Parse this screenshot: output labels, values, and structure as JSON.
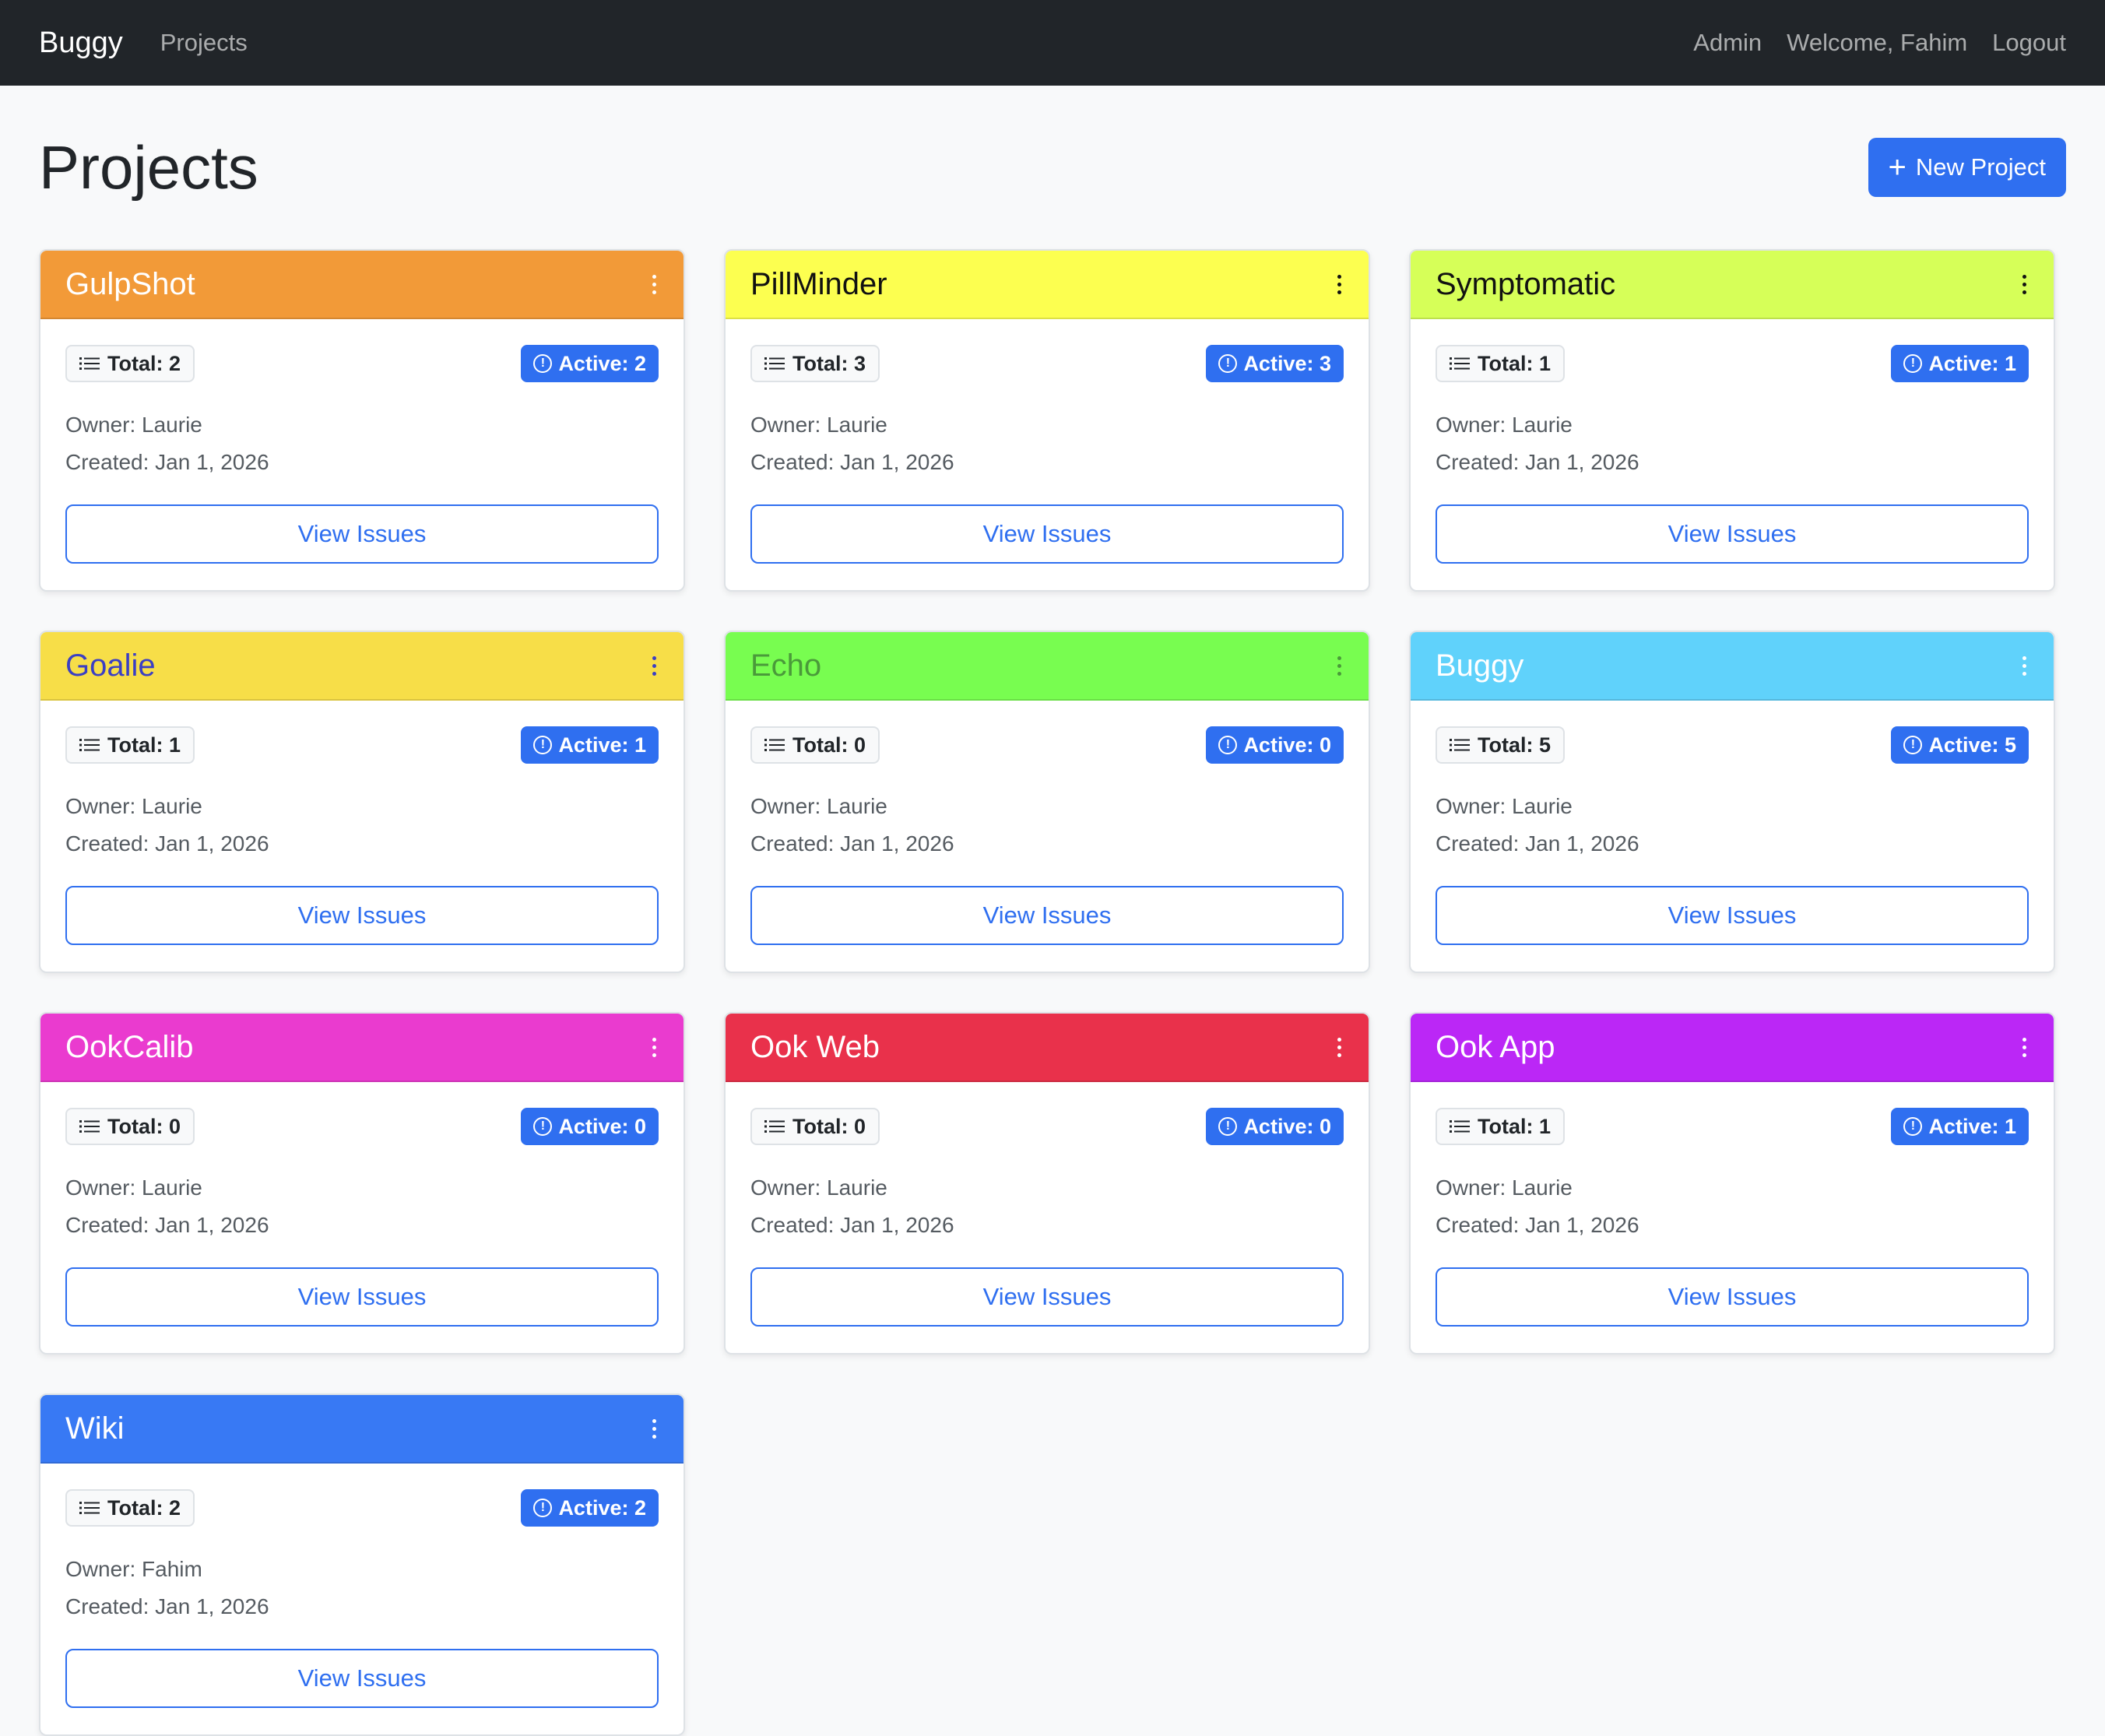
{
  "navbar": {
    "brand": "Buggy",
    "projects_link": "Projects",
    "admin_link": "Admin",
    "welcome": "Welcome, Fahim",
    "logout": "Logout"
  },
  "page": {
    "title": "Projects",
    "new_project_label": "New Project"
  },
  "projects": [
    {
      "name": "GulpShot",
      "header_bg": "#f29a38",
      "title_color": "#ffffff",
      "total": "Total: 2",
      "active": "Active: 2",
      "owner": "Owner: Laurie",
      "created": "Created: Jan 1, 2026",
      "action": "View Issues"
    },
    {
      "name": "PillMinder",
      "header_bg": "#fcff50",
      "title_color": "#111111",
      "total": "Total: 3",
      "active": "Active: 3",
      "owner": "Owner: Laurie",
      "created": "Created: Jan 1, 2026",
      "action": "View Issues"
    },
    {
      "name": "Symptomatic",
      "header_bg": "#d6ff58",
      "title_color": "#111111",
      "total": "Total: 1",
      "active": "Active: 1",
      "owner": "Owner: Laurie",
      "created": "Created: Jan 1, 2026",
      "action": "View Issues"
    },
    {
      "name": "Goalie",
      "header_bg": "#f7de48",
      "title_color": "#3b3fc4",
      "total": "Total: 1",
      "active": "Active: 1",
      "owner": "Owner: Laurie",
      "created": "Created: Jan 1, 2026",
      "action": "View Issues"
    },
    {
      "name": "Echo",
      "header_bg": "#78fd50",
      "title_color": "#4a9a3a",
      "total": "Total: 0",
      "active": "Active: 0",
      "owner": "Owner: Laurie",
      "created": "Created: Jan 1, 2026",
      "action": "View Issues"
    },
    {
      "name": "Buggy",
      "header_bg": "#60d2fb",
      "title_color": "#ffffff",
      "total": "Total: 5",
      "active": "Active: 5",
      "owner": "Owner: Laurie",
      "created": "Created: Jan 1, 2026",
      "action": "View Issues"
    },
    {
      "name": "OokCalib",
      "header_bg": "#ea3bcf",
      "title_color": "#ffffff",
      "total": "Total: 0",
      "active": "Active: 0",
      "owner": "Owner: Laurie",
      "created": "Created: Jan 1, 2026",
      "action": "View Issues"
    },
    {
      "name": "Ook Web",
      "header_bg": "#e9314b",
      "title_color": "#ffffff",
      "total": "Total: 0",
      "active": "Active: 0",
      "owner": "Owner: Laurie",
      "created": "Created: Jan 1, 2026",
      "action": "View Issues"
    },
    {
      "name": "Ook App",
      "header_bg": "#bb27f6",
      "title_color": "#ffffff",
      "total": "Total: 1",
      "active": "Active: 1",
      "owner": "Owner: Laurie",
      "created": "Created: Jan 1, 2026",
      "action": "View Issues"
    },
    {
      "name": "Wiki",
      "header_bg": "#3879f4",
      "title_color": "#ffffff",
      "total": "Total: 2",
      "active": "Active: 2",
      "owner": "Owner: Fahim",
      "created": "Created: Jan 1, 2026",
      "action": "View Issues"
    }
  ],
  "icons": {
    "list": "list-icon",
    "alert": "exclamation-circle-icon",
    "menu": "three-dots-vertical-icon",
    "plus": "plus-icon"
  },
  "colors": {
    "primary": "#2f6ff0",
    "navbar_bg": "#212529",
    "page_bg": "#f8f9fa"
  }
}
